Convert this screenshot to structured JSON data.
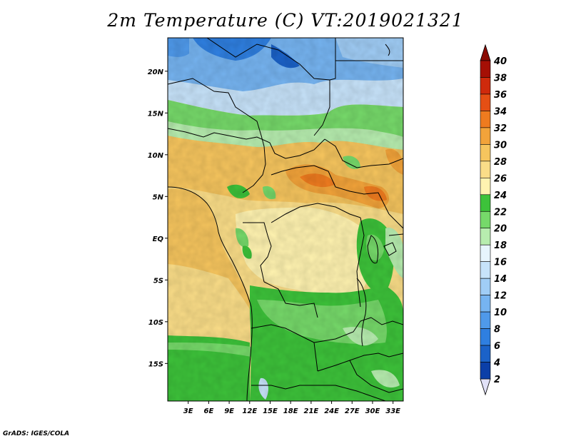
{
  "title": "2m Temperature (C) VT:2019021321",
  "credit": "GrADS: IGES/COLA",
  "map": {
    "region": "Central Africa",
    "lon_range": [
      0,
      34.5
    ],
    "lat_range": [
      -19.5,
      24
    ],
    "x_ticks": [
      "3E",
      "6E",
      "9E",
      "12E",
      "15E",
      "18E",
      "21E",
      "24E",
      "27E",
      "30E",
      "33E"
    ],
    "y_ticks": [
      "20N",
      "15N",
      "10N",
      "5N",
      "EQ",
      "5S",
      "10S",
      "15S"
    ]
  },
  "colorbar": {
    "labels": [
      "2",
      "4",
      "6",
      "8",
      "10",
      "12",
      "14",
      "16",
      "18",
      "20",
      "22",
      "24",
      "26",
      "28",
      "30",
      "32",
      "34",
      "36",
      "38",
      "40"
    ],
    "colors": [
      "#0d1a70",
      "#0b3fa8",
      "#1b62c8",
      "#2f7fe0",
      "#4f99ea",
      "#76b4f1",
      "#a0cdf6",
      "#c7e3fa",
      "#e7f5fd",
      "#b7edaf",
      "#76d96a",
      "#3dc23a",
      "#fff3b0",
      "#fadd88",
      "#f6c55e",
      "#f2a33a",
      "#ee7b1f",
      "#e54f14",
      "#cf2a0c",
      "#a50f05"
    ],
    "under_color": "#e1e1f7",
    "over_color": "#8a0a02"
  }
}
